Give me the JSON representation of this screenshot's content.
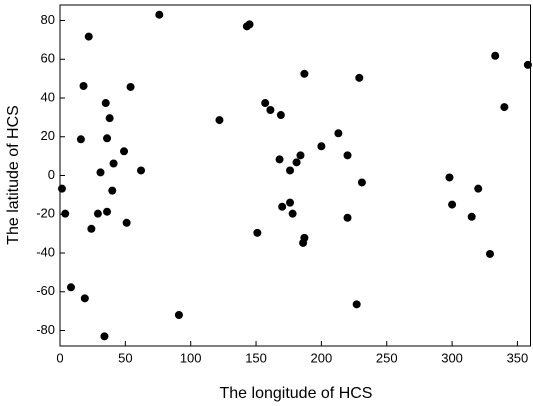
{
  "chart_data": {
    "type": "scatter",
    "x_label": "The longitude of HCS",
    "y_label": "The latitude of HCS",
    "color": "#000000",
    "x": [
      1.5,
      4,
      22,
      18,
      16,
      8.4,
      19,
      34,
      35,
      36,
      38,
      54,
      31,
      41,
      49,
      62,
      40,
      29,
      36,
      24,
      51,
      76,
      122,
      143,
      145,
      91,
      151,
      157,
      161,
      169,
      187,
      168,
      176,
      181,
      184,
      170,
      176,
      178,
      186,
      187,
      200,
      213,
      220,
      220,
      231,
      229,
      227,
      298,
      300,
      320,
      315,
      329,
      333,
      340,
      358
    ],
    "values": [
      -6.8,
      -19.7,
      71.7,
      46.2,
      18.7,
      -57.7,
      -63.4,
      -83,
      37.4,
      19.2,
      29.6,
      45.7,
      1.6,
      6.2,
      12.5,
      2.6,
      -7.8,
      -19.7,
      -18.7,
      -27.5,
      -24.4,
      83,
      28.6,
      77,
      78,
      -72,
      -29.6,
      37.4,
      33.8,
      31.2,
      52.5,
      8.3,
      2.6,
      6.8,
      10.4,
      -16.1,
      -14,
      -19.7,
      -34.8,
      -32.2,
      15.1,
      21.8,
      10.4,
      -21.8,
      -3.6,
      50.4,
      -66.5,
      -1,
      -15,
      -6.8,
      -21.3,
      -40.5,
      61.8,
      35.3,
      57.1
    ],
    "xlim": [
      0,
      360
    ],
    "ylim": [
      -88,
      88
    ],
    "xticks": [
      0,
      50,
      100,
      150,
      200,
      250,
      300,
      350
    ],
    "yticks": [
      -80,
      -60,
      -40,
      -20,
      0,
      20,
      40,
      60,
      80
    ]
  }
}
